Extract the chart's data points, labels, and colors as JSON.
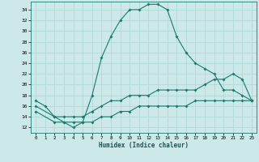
{
  "title": "",
  "xlabel": "Humidex (Indice chaleur)",
  "bg_color": "#cce8e8",
  "grid_color": "#b0d8d8",
  "line_color": "#1a7a6e",
  "xlim": [
    -0.5,
    23.5
  ],
  "ylim": [
    11,
    35.5
  ],
  "yticks": [
    12,
    14,
    16,
    18,
    20,
    22,
    24,
    26,
    28,
    30,
    32,
    34
  ],
  "xticks": [
    0,
    1,
    2,
    3,
    4,
    5,
    6,
    7,
    8,
    9,
    10,
    11,
    12,
    13,
    14,
    15,
    16,
    17,
    18,
    19,
    20,
    21,
    22,
    23
  ],
  "curve1_x": [
    0,
    1,
    2,
    3,
    4,
    5,
    6,
    7,
    8,
    9,
    10,
    11,
    12,
    13,
    14,
    15,
    16,
    17,
    18,
    19,
    20,
    21,
    22,
    23
  ],
  "curve1_y": [
    17,
    16,
    14,
    13,
    12,
    13,
    18,
    25,
    29,
    32,
    34,
    34,
    35,
    35,
    34,
    29,
    26,
    24,
    23,
    22,
    19,
    19,
    18,
    17
  ],
  "curve2_x": [
    0,
    2,
    3,
    4,
    5,
    6,
    7,
    8,
    9,
    10,
    11,
    12,
    13,
    14,
    15,
    16,
    17,
    18,
    19,
    20,
    21,
    22,
    23
  ],
  "curve2_y": [
    16,
    14,
    14,
    14,
    14,
    15,
    16,
    17,
    17,
    18,
    18,
    18,
    19,
    19,
    19,
    19,
    19,
    20,
    21,
    21,
    22,
    21,
    17
  ],
  "curve3_x": [
    0,
    2,
    3,
    4,
    5,
    6,
    7,
    8,
    9,
    10,
    11,
    12,
    13,
    14,
    15,
    16,
    17,
    18,
    19,
    20,
    21,
    22,
    23
  ],
  "curve3_y": [
    15,
    13,
    13,
    13,
    13,
    13,
    14,
    14,
    15,
    15,
    16,
    16,
    16,
    16,
    16,
    16,
    17,
    17,
    17,
    17,
    17,
    17,
    17
  ]
}
